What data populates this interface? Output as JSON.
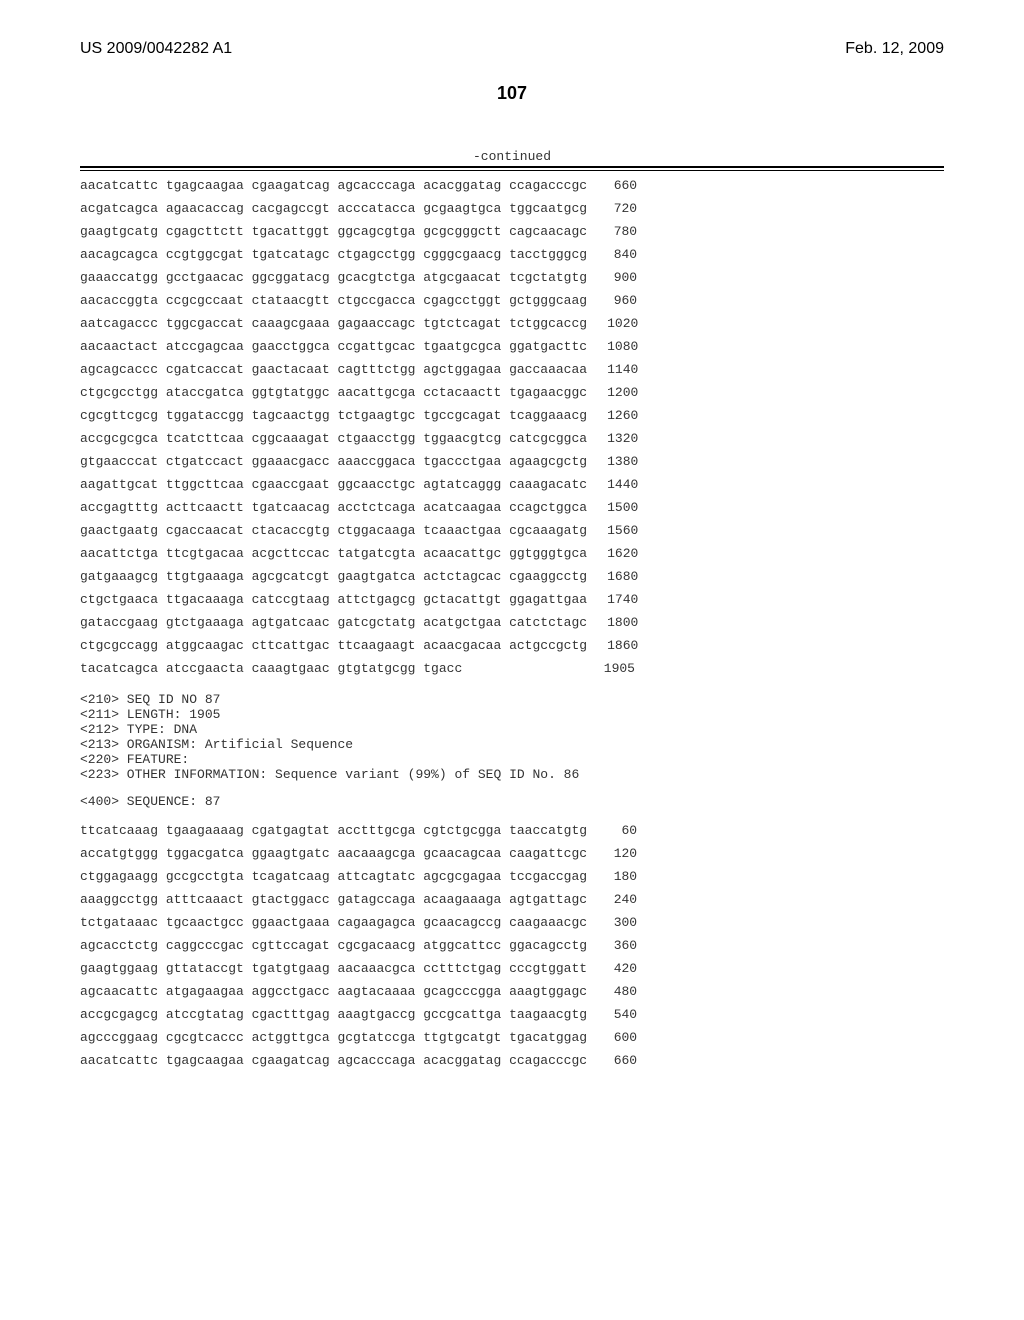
{
  "header": {
    "left": "US 2009/0042282 A1",
    "right": "Feb. 12, 2009"
  },
  "page_number": "107",
  "continued_label": "-continued",
  "sequence1": {
    "lines": [
      {
        "text": "aacatcattc tgagcaagaa cgaagatcag agcacccaga acacggatag ccagacccgc",
        "pos": "660"
      },
      {
        "text": "acgatcagca agaacaccag cacgagccgt acccatacca gcgaagtgca tggcaatgcg",
        "pos": "720"
      },
      {
        "text": "gaagtgcatg cgagcttctt tgacattggt ggcagcgtga gcgcgggctt cagcaacagc",
        "pos": "780"
      },
      {
        "text": "aacagcagca ccgtggcgat tgatcatagc ctgagcctgg cgggcgaacg tacctgggcg",
        "pos": "840"
      },
      {
        "text": "gaaaccatgg gcctgaacac ggcggatacg gcacgtctga atgcgaacat tcgctatgtg",
        "pos": "900"
      },
      {
        "text": "aacaccggta ccgcgccaat ctataacgtt ctgccgacca cgagcctggt gctgggcaag",
        "pos": "960"
      },
      {
        "text": "aatcagaccc tggcgaccat caaagcgaaa gagaaccagc tgtctcagat tctggcaccg",
        "pos": "1020"
      },
      {
        "text": "aacaactact atccgagcaa gaacctggca ccgattgcac tgaatgcgca ggatgacttc",
        "pos": "1080"
      },
      {
        "text": "agcagcaccc cgatcaccat gaactacaat cagtttctgg agctggagaa gaccaaacaa",
        "pos": "1140"
      },
      {
        "text": "ctgcgcctgg ataccgatca ggtgtatggc aacattgcga cctacaactt tgagaacggc",
        "pos": "1200"
      },
      {
        "text": "cgcgttcgcg tggataccgg tagcaactgg tctgaagtgc tgccgcagat tcaggaaacg",
        "pos": "1260"
      },
      {
        "text": "accgcgcgca tcatcttcaa cggcaaagat ctgaacctgg tggaacgtcg catcgcggca",
        "pos": "1320"
      },
      {
        "text": "gtgaacccat ctgatccact ggaaacgacc aaaccggaca tgaccctgaa agaagcgctg",
        "pos": "1380"
      },
      {
        "text": "aagattgcat ttggcttcaa cgaaccgaat ggcaacctgc agtatcaggg caaagacatc",
        "pos": "1440"
      },
      {
        "text": "accgagtttg acttcaactt tgatcaacag acctctcaga acatcaagaa ccagctggca",
        "pos": "1500"
      },
      {
        "text": "gaactgaatg cgaccaacat ctacaccgtg ctggacaaga tcaaactgaa cgcaaagatg",
        "pos": "1560"
      },
      {
        "text": "aacattctga ttcgtgacaa acgcttccac tatgatcgta acaacattgc ggtgggtgca",
        "pos": "1620"
      },
      {
        "text": "gatgaaagcg ttgtgaaaga agcgcatcgt gaagtgatca actctagcac cgaaggcctg",
        "pos": "1680"
      },
      {
        "text": "ctgctgaaca ttgacaaaga catccgtaag attctgagcg gctacattgt ggagattgaa",
        "pos": "1740"
      },
      {
        "text": "gataccgaag gtctgaaaga agtgatcaac gatcgctatg acatgctgaa catctctagc",
        "pos": "1800"
      },
      {
        "text": "ctgcgccagg atggcaagac cttcattgac ttcaagaagt acaacgacaa actgccgctg",
        "pos": "1860"
      },
      {
        "text": "tacatcagca atccgaacta caaagtgaac gtgtatgcgg tgacc",
        "pos": "1905"
      }
    ]
  },
  "meta": {
    "lines": [
      "<210> SEQ ID NO 87",
      "<211> LENGTH: 1905",
      "<212> TYPE: DNA",
      "<213> ORGANISM: Artificial Sequence",
      "<220> FEATURE:",
      "<223> OTHER INFORMATION: Sequence variant (99%) of SEQ ID No. 86"
    ]
  },
  "sequence_label": "<400> SEQUENCE: 87",
  "sequence2": {
    "lines": [
      {
        "text": "ttcatcaaag tgaagaaaag cgatgagtat acctttgcga cgtctgcgga taaccatgtg",
        "pos": "60"
      },
      {
        "text": "accatgtggg tggacgatca ggaagtgatc aacaaagcga gcaacagcaa caagattcgc",
        "pos": "120"
      },
      {
        "text": "ctggagaagg gccgcctgta tcagatcaag attcagtatc agcgcgagaa tccgaccgag",
        "pos": "180"
      },
      {
        "text": "aaaggcctgg atttcaaact gtactggacc gatagccaga acaagaaaga agtgattagc",
        "pos": "240"
      },
      {
        "text": "tctgataaac tgcaactgcc ggaactgaaa cagaagagca gcaacagccg caagaaacgc",
        "pos": "300"
      },
      {
        "text": "agcacctctg caggcccgac cgttccagat cgcgacaacg atggcattcc ggacagcctg",
        "pos": "360"
      },
      {
        "text": "gaagtggaag gttataccgt tgatgtgaag aacaaacgca cctttctgag cccgtggatt",
        "pos": "420"
      },
      {
        "text": "agcaacattc atgagaagaa aggcctgacc aagtacaaaa gcagcccgga aaagtggagc",
        "pos": "480"
      },
      {
        "text": "accgcgagcg atccgtatag cgactttgag aaagtgaccg gccgcattga taagaacgtg",
        "pos": "540"
      },
      {
        "text": "agcccggaag cgcgtcaccc actggttgca gcgtatccga ttgtgcatgt tgacatggag",
        "pos": "600"
      },
      {
        "text": "aacatcattc tgagcaagaa cgaagatcag agcacccaga acacggatag ccagacccgc",
        "pos": "660"
      }
    ]
  }
}
